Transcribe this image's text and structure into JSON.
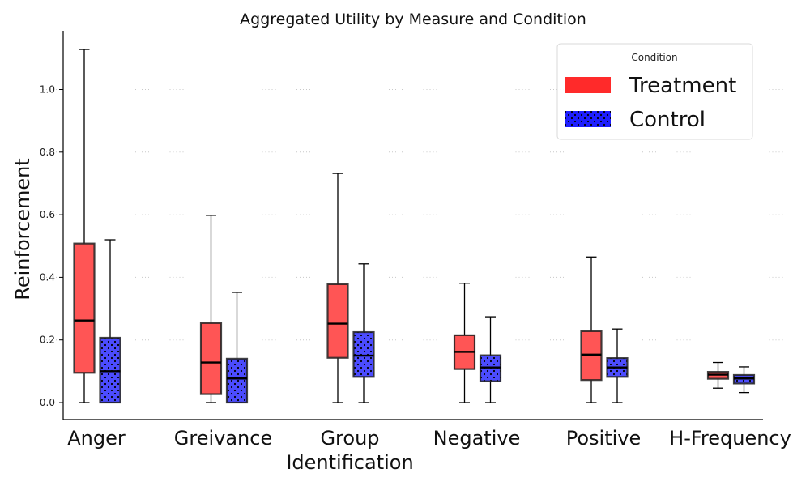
{
  "chart_data": {
    "type": "box",
    "title": "Aggregated Utility by Measure and Condition",
    "xlabel": "",
    "ylabel": "Reinforcement",
    "ylim": [
      -0.06,
      1.18
    ],
    "yticks": [
      "0.0",
      "0.2",
      "0.4",
      "0.6",
      "0.8",
      "1.0"
    ],
    "grid": "dotted",
    "categories": [
      "Anger",
      "Greivance",
      "Group Identification",
      "Negative",
      "Positive",
      "H-Frequency"
    ],
    "legend": {
      "title": "Condition",
      "placement": "top-right",
      "entries": [
        "Treatment",
        "Control"
      ]
    },
    "series": [
      {
        "name": "Treatment",
        "color": "#ff2a2a",
        "hatch": "none",
        "boxes": [
          {
            "min": 0.0,
            "q1": 0.095,
            "median": 0.262,
            "q3": 0.508,
            "max": 1.128
          },
          {
            "min": 0.0,
            "q1": 0.027,
            "median": 0.128,
            "q3": 0.254,
            "max": 0.598
          },
          {
            "min": 0.0,
            "q1": 0.143,
            "median": 0.252,
            "q3": 0.378,
            "max": 0.732
          },
          {
            "min": 0.0,
            "q1": 0.107,
            "median": 0.162,
            "q3": 0.215,
            "max": 0.381
          },
          {
            "min": 0.0,
            "q1": 0.072,
            "median": 0.153,
            "q3": 0.228,
            "max": 0.465
          },
          {
            "min": 0.046,
            "q1": 0.076,
            "median": 0.089,
            "q3": 0.098,
            "max": 0.128
          }
        ]
      },
      {
        "name": "Control",
        "color": "#1f1fff",
        "hatch": "dots",
        "boxes": [
          {
            "min": 0.0,
            "q1": 0.0,
            "median": 0.1,
            "q3": 0.207,
            "max": 0.52
          },
          {
            "min": 0.0,
            "q1": 0.0,
            "median": 0.077,
            "q3": 0.14,
            "max": 0.352
          },
          {
            "min": 0.0,
            "q1": 0.082,
            "median": 0.15,
            "q3": 0.225,
            "max": 0.443
          },
          {
            "min": 0.0,
            "q1": 0.068,
            "median": 0.112,
            "q3": 0.151,
            "max": 0.274
          },
          {
            "min": 0.0,
            "q1": 0.082,
            "median": 0.112,
            "q3": 0.142,
            "max": 0.235
          },
          {
            "min": 0.032,
            "q1": 0.061,
            "median": 0.077,
            "q3": 0.088,
            "max": 0.114
          }
        ]
      }
    ]
  }
}
